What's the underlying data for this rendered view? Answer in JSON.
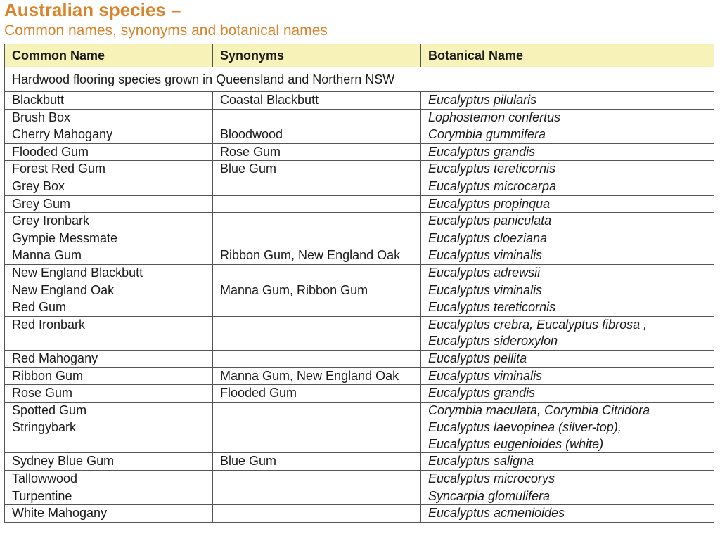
{
  "title": "Australian species –",
  "subtitle": "Common names, synonyms and botanical names",
  "table": {
    "headers": [
      "Common Name",
      "Synonyms",
      "Botanical Name"
    ],
    "section_label": "Hardwood flooring species grown in Queensland and Northern NSW",
    "rows": [
      {
        "common": "Blackbutt",
        "synonyms": "Coastal Blackbutt",
        "botanical": [
          "Eucalyptus pilularis"
        ]
      },
      {
        "common": "Brush Box",
        "synonyms": "",
        "botanical": [
          "Lophostemon confertus"
        ]
      },
      {
        "common": "Cherry Mahogany",
        "synonyms": "Bloodwood",
        "botanical": [
          "Corymbia gummifera"
        ]
      },
      {
        "common": "Flooded Gum",
        "synonyms": "Rose Gum",
        "botanical": [
          "Eucalyptus grandis"
        ]
      },
      {
        "common": "Forest Red Gum",
        "synonyms": "Blue Gum",
        "botanical": [
          "Eucalyptus tereticornis"
        ]
      },
      {
        "common": "Grey Box",
        "synonyms": "",
        "botanical": [
          "Eucalyptus microcarpa"
        ]
      },
      {
        "common": "Grey Gum",
        "synonyms": "",
        "botanical": [
          "Eucalyptus propinqua"
        ]
      },
      {
        "common": "Grey Ironbark",
        "synonyms": "",
        "botanical": [
          "Eucalyptus paniculata"
        ]
      },
      {
        "common": "Gympie Messmate",
        "synonyms": "",
        "botanical": [
          "Eucalyptus cloeziana"
        ]
      },
      {
        "common": "Manna Gum",
        "synonyms": "Ribbon Gum, New England Oak",
        "botanical": [
          "Eucalyptus viminalis"
        ]
      },
      {
        "common": "New England Blackbutt",
        "synonyms": "",
        "botanical": [
          "Eucalyptus adrewsii"
        ]
      },
      {
        "common": "New England Oak",
        "synonyms": "Manna Gum, Ribbon Gum",
        "botanical": [
          "Eucalyptus viminalis"
        ]
      },
      {
        "common": "Red Gum",
        "synonyms": "",
        "botanical": [
          "Eucalyptus tereticornis"
        ]
      },
      {
        "common": "Red Ironbark",
        "synonyms": "",
        "botanical": [
          "Eucalyptus crebra, Eucalyptus fibrosa ,",
          "Eucalyptus sideroxylon"
        ]
      },
      {
        "common": "Red Mahogany",
        "synonyms": "",
        "botanical": [
          "Eucalyptus pellita"
        ]
      },
      {
        "common": "Ribbon Gum",
        "synonyms": "Manna Gum, New England Oak",
        "botanical": [
          "Eucalyptus viminalis"
        ]
      },
      {
        "common": "Rose Gum",
        "synonyms": "Flooded Gum",
        "botanical": [
          "Eucalyptus grandis"
        ]
      },
      {
        "common": "Spotted Gum",
        "synonyms": "",
        "botanical": [
          "Corymbia maculata, Corymbia Citridora"
        ]
      },
      {
        "common": "Stringybark",
        "synonyms": "",
        "botanical": [
          "Eucalyptus laevopinea (silver-top),",
          "Eucalyptus eugenioides (white)"
        ]
      },
      {
        "common": "Sydney Blue Gum",
        "synonyms": "Blue Gum",
        "botanical": [
          "Eucalyptus saligna"
        ]
      },
      {
        "common": "Tallowwood",
        "synonyms": "",
        "botanical": [
          "Eucalyptus microcorys"
        ]
      },
      {
        "common": "Turpentine",
        "synonyms": "",
        "botanical": [
          "Syncarpia glomulifera"
        ]
      },
      {
        "common": "White Mahogany",
        "synonyms": "",
        "botanical": [
          "Eucalyptus acmenioides"
        ]
      }
    ]
  },
  "colors": {
    "heading": "#d9832b",
    "header_bg": "#f7f2b8",
    "border": "#555555"
  }
}
